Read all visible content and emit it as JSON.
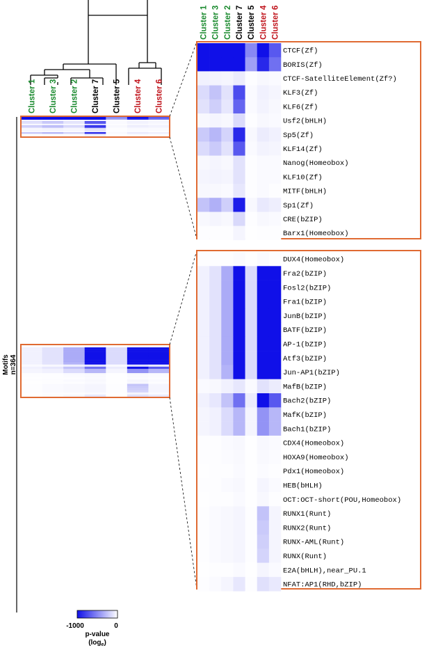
{
  "chart_data": {
    "type": "heatmap",
    "y_label": "Motifs",
    "n_label": "n=364",
    "clusters": [
      {
        "name": "Cluster 1",
        "color": "#1a8a2e"
      },
      {
        "name": "Cluster 3",
        "color": "#1a8a2e"
      },
      {
        "name": "Cluster 2",
        "color": "#1a8a2e"
      },
      {
        "name": "Cluster 7",
        "color": "#000000"
      },
      {
        "name": "Cluster 5",
        "color": "#000000"
      },
      {
        "name": "Cluster 4",
        "color": "#c0141c"
      },
      {
        "name": "Cluster 6",
        "color": "#c0141c"
      }
    ],
    "colorbar": {
      "min_label": "-1000",
      "max_label": "0",
      "title": "p-value",
      "subtitle": "(log",
      "subtitle_sub": "e",
      "subtitle_end": ")",
      "min_color": "#1010e8",
      "max_color": "#ffffff",
      "min": -1000,
      "max": 0
    },
    "zoom_top": {
      "motifs": [
        "CTCF(Zf)",
        "BORIS(Zf)",
        "CTCF-SatelliteElement(Zf?)",
        "KLF3(Zf)",
        "KLF6(Zf)",
        "Usf2(bHLH)",
        "Sp5(Zf)",
        "KLF14(Zf)",
        "Nanog(Homeobox)",
        "KLF10(Zf)",
        "MITF(bHLH)",
        "Sp1(Zf)",
        "CRE(bZIP)",
        "Barx1(Homeobox)"
      ],
      "values": [
        [
          -1000,
          -1000,
          -1000,
          -1000,
          -500,
          -1000,
          -700
        ],
        [
          -1000,
          -1000,
          -1000,
          -1000,
          -400,
          -900,
          -600
        ],
        [
          -60,
          -50,
          -40,
          -80,
          -10,
          -30,
          -20
        ],
        [
          -150,
          -250,
          -120,
          -750,
          -20,
          -60,
          -40
        ],
        [
          -120,
          -200,
          -100,
          -650,
          -20,
          -50,
          -30
        ],
        [
          -30,
          -40,
          -30,
          -150,
          -10,
          -30,
          -20
        ],
        [
          -220,
          -300,
          -180,
          -900,
          -30,
          -80,
          -60
        ],
        [
          -150,
          -220,
          -120,
          -700,
          -20,
          -50,
          -40
        ],
        [
          -30,
          -40,
          -30,
          -120,
          -10,
          -20,
          -20
        ],
        [
          -40,
          -50,
          -40,
          -120,
          -10,
          -20,
          -20
        ],
        [
          -30,
          -30,
          -20,
          -100,
          -10,
          -20,
          -10
        ],
        [
          -250,
          -330,
          -200,
          -950,
          -30,
          -90,
          -70
        ],
        [
          -30,
          -40,
          -30,
          -160,
          -10,
          -30,
          -20
        ],
        [
          -10,
          -10,
          -10,
          -40,
          -5,
          -10,
          -10
        ]
      ]
    },
    "zoom_bottom": {
      "motifs": [
        "DUX4(Homeobox)",
        "Fra2(bZIP)",
        "Fosl2(bZIP)",
        "Fra1(bZIP)",
        "JunB(bZIP)",
        "BATF(bZIP)",
        "AP-1(bZIP)",
        "Atf3(bZIP)",
        "Jun-AP1(bZIP)",
        "MafB(bZIP)",
        "Bach2(bZIP)",
        "MafK(bZIP)",
        "Bach1(bZIP)",
        "CDX4(Homeobox)",
        "HOXA9(Homeobox)",
        "Pdx1(Homeobox)",
        "HEB(bHLH)",
        "OCT:OCT-short(POU,Homeobox)",
        "RUNX1(Runt)",
        "RUNX2(Runt)",
        "RUNX-AML(Runt)",
        "RUNX(Runt)",
        "E2A(bHLH),near_PU.1",
        "NFAT:AP1(RHD,bZIP)"
      ],
      "values": [
        [
          -10,
          -10,
          -10,
          -20,
          -5,
          -20,
          -10
        ],
        [
          -60,
          -120,
          -350,
          -1000,
          -150,
          -1000,
          -1000
        ],
        [
          -60,
          -120,
          -350,
          -1000,
          -150,
          -1000,
          -1000
        ],
        [
          -60,
          -120,
          -350,
          -1000,
          -150,
          -1000,
          -1000
        ],
        [
          -60,
          -120,
          -350,
          -1000,
          -150,
          -1000,
          -1000
        ],
        [
          -60,
          -120,
          -350,
          -1000,
          -150,
          -1000,
          -1000
        ],
        [
          -60,
          -120,
          -350,
          -1000,
          -150,
          -1000,
          -1000
        ],
        [
          -60,
          -120,
          -350,
          -1000,
          -150,
          -1000,
          -1000
        ],
        [
          -60,
          -120,
          -320,
          -1000,
          -150,
          -1000,
          -1000
        ],
        [
          -20,
          -30,
          -60,
          -100,
          -20,
          -120,
          -80
        ],
        [
          -60,
          -100,
          -250,
          -600,
          -80,
          -1000,
          -700
        ],
        [
          -40,
          -60,
          -150,
          -300,
          -40,
          -450,
          -300
        ],
        [
          -40,
          -60,
          -150,
          -300,
          -40,
          -450,
          -300
        ],
        [
          -10,
          -10,
          -20,
          -30,
          -5,
          -30,
          -20
        ],
        [
          -10,
          -10,
          -15,
          -25,
          -5,
          -25,
          -15
        ],
        [
          -5,
          -10,
          -10,
          -20,
          -5,
          -15,
          -10
        ],
        [
          -10,
          -10,
          -20,
          -30,
          -5,
          -40,
          -20
        ],
        [
          -5,
          -10,
          -10,
          -20,
          -5,
          -30,
          -10
        ],
        [
          -10,
          -20,
          -30,
          -40,
          -10,
          -250,
          -40
        ],
        [
          -10,
          -20,
          -30,
          -40,
          -10,
          -220,
          -40
        ],
        [
          -10,
          -20,
          -30,
          -40,
          -10,
          -200,
          -40
        ],
        [
          -10,
          -20,
          -30,
          -40,
          -10,
          -180,
          -40
        ],
        [
          -5,
          -10,
          -10,
          -20,
          -5,
          -40,
          -20
        ],
        [
          -10,
          -20,
          -40,
          -100,
          -10,
          -130,
          -90
        ]
      ]
    }
  }
}
